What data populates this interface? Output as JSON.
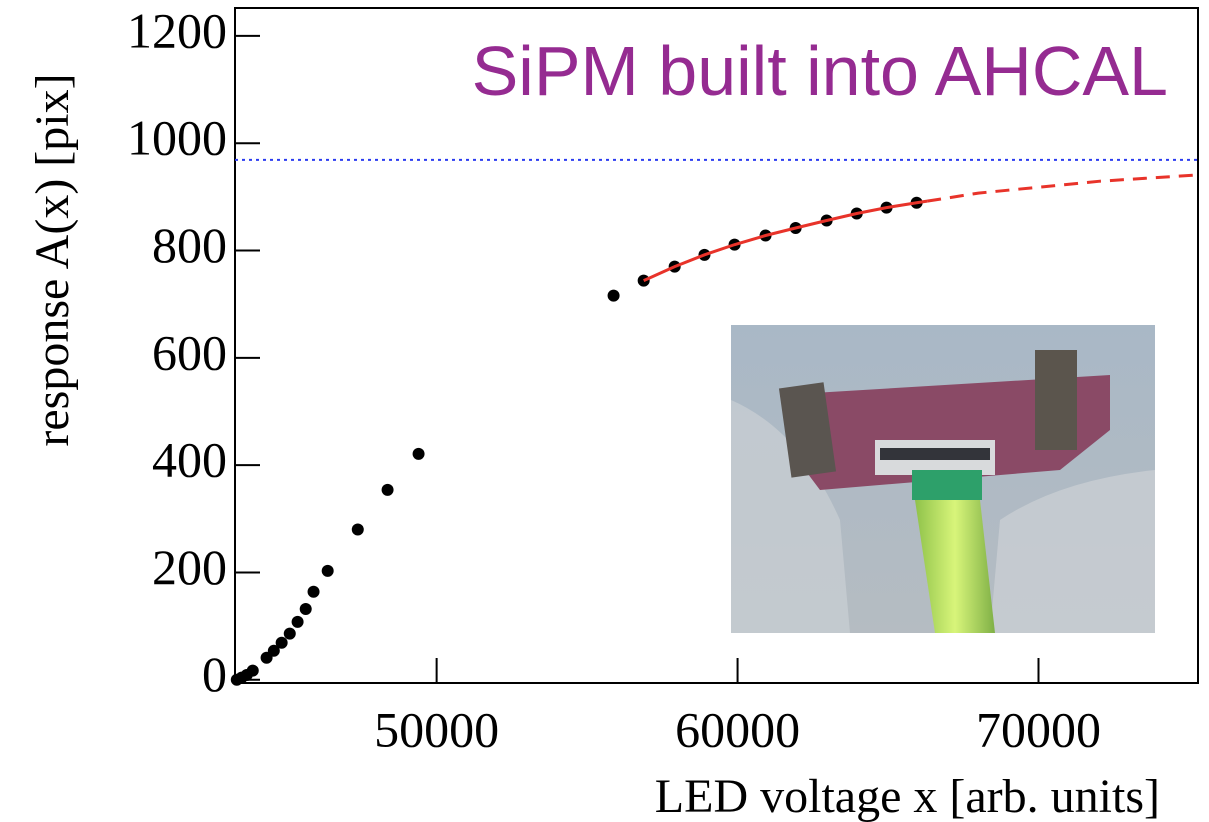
{
  "chart_data": {
    "type": "scatter",
    "title": "SiPM built into AHCAL",
    "x_label": "LED voltage x [arb. units]",
    "y_label": "response A(x) [pix]",
    "xlim": [
      43300,
      75300
    ],
    "ylim": [
      -6,
      1252
    ],
    "xticks": [
      50000,
      60000,
      70000
    ],
    "yticks": [
      0,
      200,
      400,
      600,
      800,
      1000,
      1200
    ],
    "series": [
      {
        "style": "markers",
        "color": "#000000",
        "x": [
          43360,
          43520,
          43690,
          43890,
          44350,
          44590,
          44850,
          45120,
          45380,
          45650,
          45910,
          46380,
          47380,
          48370,
          49400,
          55880,
          56880,
          57910,
          58900,
          59900,
          60930,
          61930,
          62960,
          63960,
          64950,
          65950
        ],
        "values": [
          0,
          4,
          9,
          17,
          41,
          54,
          69,
          86,
          108,
          132,
          164,
          203,
          280,
          354,
          421,
          716,
          744,
          770,
          792,
          811,
          828,
          842,
          856,
          869,
          880,
          889
        ]
      },
      {
        "style": "solid",
        "color": "#e8332a",
        "x": [
          56880,
          57910,
          58900,
          59900,
          60930,
          61930,
          62960,
          63960,
          64950,
          65950,
          66300
        ],
        "values": [
          744,
          770,
          792,
          811,
          828,
          842,
          856,
          869,
          880,
          889,
          892
        ]
      },
      {
        "style": "dashed",
        "color": "#e8332a",
        "x": [
          66300,
          68000,
          70000,
          72000,
          75300
        ],
        "values": [
          892,
          907,
          918,
          929,
          941
        ]
      }
    ],
    "hlines": [
      {
        "value": 969,
        "color": "#2b3cf0",
        "style": "dotted"
      }
    ],
    "title_color": "#952b91"
  }
}
